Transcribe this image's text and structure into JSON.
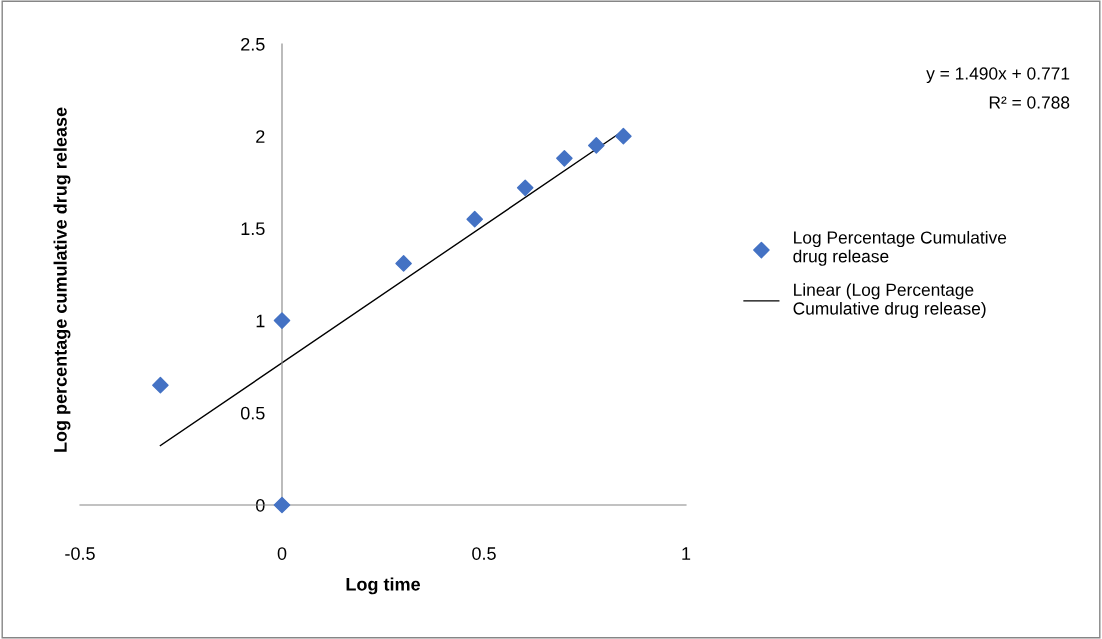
{
  "chart_data": {
    "type": "scatter",
    "xlabel": "Log time",
    "ylabel": "Log percentage cumulative drug release",
    "series": [
      {
        "name": "Log Percentage Cumulative drug release",
        "type": "scatter",
        "color": "#4472c4",
        "marker": "diamond",
        "x": [
          -0.301,
          0,
          0,
          0.301,
          0.477,
          0.602,
          0.699,
          0.778,
          0.845
        ],
        "values": [
          0.65,
          1.0,
          0,
          1.31,
          1.55,
          1.72,
          1.88,
          1.95,
          2.0
        ]
      },
      {
        "name": "Linear (Log Percentage Cumulative drug release)",
        "type": "line",
        "color": "#000000",
        "marker": "none",
        "line_style": "solid",
        "x": [
          -0.301,
          0.845
        ],
        "values": [
          0.322,
          2.03
        ]
      }
    ],
    "xlim": [
      -0.5,
      1
    ],
    "xticks": [
      -0.5,
      0,
      0.5,
      1
    ],
    "ylim": [
      0,
      2.5
    ],
    "yticks": [
      0,
      0.5,
      1,
      1.5,
      2,
      2.5
    ],
    "grid": false,
    "legend": "right",
    "annotations": [
      "y = 1.490x + 0.771",
      "R² = 0.788"
    ]
  }
}
